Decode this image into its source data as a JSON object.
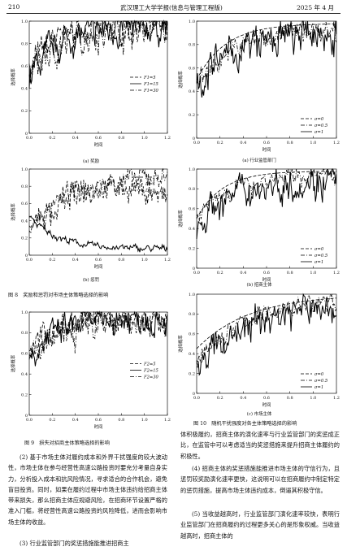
{
  "header": {
    "page_number": "210",
    "journal": "武汉理工大学学报(信息与管理工程版)",
    "date": "2025 年 4 月"
  },
  "figure8": {
    "caption": "图 8　奖励和惩罚对市场主体策略选择的影响",
    "sub_a": "(a) 奖励",
    "sub_b": "(b) 惩罚"
  },
  "figure9": {
    "caption": "图 9　损失对招商主体策略选择的影响"
  },
  "figure10": {
    "caption": "图 10　随机干扰强度对各主体策略选择的影响",
    "sub_a": "(a) 行业监管部门",
    "sub_b": "(b) 招商主体",
    "sub_c": "(c) 市场主体"
  },
  "chart_data": [
    {
      "id": "fig8a",
      "type": "line",
      "xlabel": "时间",
      "ylabel": "选择概率",
      "xlim": [
        0,
        1.2
      ],
      "ylim": [
        0,
        1
      ],
      "xticks": [
        "0.0",
        "0.2",
        "0.4",
        "0.6",
        "0.8",
        "1.0",
        "1.2"
      ],
      "yticks": [
        "0",
        "0.2",
        "0.4",
        "0.6",
        "0.8",
        "1.0"
      ],
      "legend_position": "right",
      "series": [
        {
          "name": "F1=5",
          "style": "dashed"
        },
        {
          "name": "F1=15",
          "style": "solid"
        },
        {
          "name": "F1=30",
          "style": "dash-dot"
        }
      ]
    },
    {
      "id": "fig8b",
      "type": "line",
      "xlabel": "时间",
      "ylabel": "选择概率",
      "xlim": [
        0,
        1.2
      ],
      "ylim": [
        0,
        1
      ],
      "xticks": [
        "0.0",
        "0.2",
        "0.4",
        "0.6",
        "0.8",
        "1.0",
        "1.2"
      ],
      "yticks": [
        "0",
        "0.2",
        "0.4",
        "0.6",
        "0.8",
        "1.0"
      ],
      "legend_position": "top-right",
      "series": [
        {
          "name": "D=1",
          "style": "solid"
        },
        {
          "name": "D=4",
          "style": "dashed"
        },
        {
          "name": "D=9",
          "style": "dash-dot"
        }
      ]
    },
    {
      "id": "fig9",
      "type": "line",
      "xlabel": "时间",
      "ylabel": "选择概率",
      "xlim": [
        0,
        1.2
      ],
      "ylim": [
        0,
        1
      ],
      "xticks": [
        "0.0",
        "0.2",
        "0.4",
        "0.6",
        "0.8",
        "1.0",
        "1.2"
      ],
      "yticks": [
        "0",
        "0.2",
        "0.4",
        "0.6",
        "0.8",
        "1.0"
      ],
      "legend_position": "right",
      "series": [
        {
          "name": "F2=5",
          "style": "dashed"
        },
        {
          "name": "F2=15",
          "style": "solid"
        },
        {
          "name": "F2=30",
          "style": "dash-dot"
        }
      ]
    },
    {
      "id": "fig10a",
      "type": "line",
      "xlabel": "时间",
      "ylabel": "选择概率",
      "xlim": [
        0,
        1.2
      ],
      "ylim": [
        0,
        1
      ],
      "xticks": [
        "0.0",
        "0.2",
        "0.4",
        "0.6",
        "0.8",
        "1.0",
        "1.2"
      ],
      "yticks": [
        "0",
        "0.2",
        "0.4",
        "0.6",
        "0.8",
        "1.0"
      ],
      "legend_position": "bottom-right",
      "series": [
        {
          "name": "σ=0",
          "style": "dashed"
        },
        {
          "name": "σ=0.5",
          "style": "dash-dot"
        },
        {
          "name": "σ=1",
          "style": "solid"
        }
      ]
    },
    {
      "id": "fig10b",
      "type": "line",
      "xlabel": "时间",
      "ylabel": "选择概率",
      "xlim": [
        0,
        1.2
      ],
      "ylim": [
        0,
        1
      ],
      "xticks": [
        "0.0",
        "0.2",
        "0.4",
        "0.6",
        "0.8",
        "1.0",
        "1.2"
      ],
      "yticks": [
        "0",
        "0.2",
        "0.4",
        "0.6",
        "0.8",
        "1.0"
      ],
      "legend_position": "bottom-right",
      "series": [
        {
          "name": "σ=0",
          "style": "dashed"
        },
        {
          "name": "σ=0.5",
          "style": "dash-dot"
        },
        {
          "name": "σ=1",
          "style": "solid"
        }
      ]
    },
    {
      "id": "fig10c",
      "type": "line",
      "xlabel": "时间",
      "ylabel": "选择概率",
      "xlim": [
        0,
        1.2
      ],
      "ylim": [
        0,
        1
      ],
      "xticks": [
        "0.0",
        "0.2",
        "0.4",
        "0.6",
        "0.8",
        "1.0",
        "1.2"
      ],
      "yticks": [
        "0",
        "0.2",
        "0.4",
        "0.6",
        "0.8",
        "1.0"
      ],
      "legend_position": "bottom-right",
      "series": [
        {
          "name": "σ=0",
          "style": "dashed"
        },
        {
          "name": "σ=0.5",
          "style": "dash-dot"
        },
        {
          "name": "σ=1",
          "style": "solid"
        }
      ]
    }
  ],
  "left_text": {
    "p1": "(2) 基于市场主体对履约成本和外界干扰强度的较大波动性，市场主体在参与经营性高速公路投资时要充分考量自身实力，分析投入成本和抗风险情况，寻求适合的合作机会，避免盲目投资。同时，如果在履约过程中市场主体违约给招商主体带来损失，那么招商主体应规避风险，在招商环节设置严格的准入门槛，将经营性高速公路投资的风险降低，进而会影响市场主体的收益。",
    "p2": "(3) 行业监管部门的奖惩措施能推进招商主"
  },
  "right_text": {
    "p1": "体积极履约，招商主体的演化速率与行业监管部门的奖惩成正比，在监管中可以考虑适当的奖惩措施来提升招商主体履约的积极性。",
    "p2": "(4) 招商主体的奖惩措施能推进市场主体的守信行为，且惩罚较奖励演化速率更快，这说明可以在招商履约中制定特定的惩罚措施，提高市场主体违约成本，倒逼其积极守信。",
    "p3": "(5) 当收益越高时，行业监管部门演化速率较快，表明行业监管部门在招商履约的过程更多关心的是形象权威。当收益越高时，招商主体的"
  }
}
